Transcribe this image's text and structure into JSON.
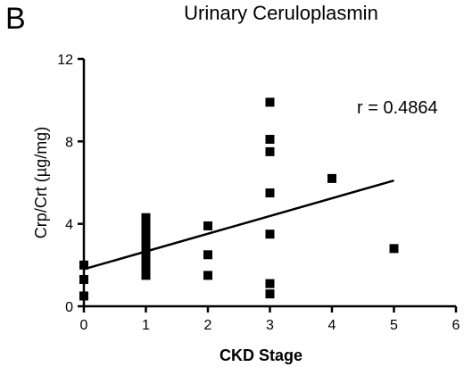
{
  "panel_letter": "B",
  "chart_data": {
    "type": "scatter",
    "title": "Urinary Ceruloplasmin",
    "xlabel": "CKD Stage",
    "ylabel": "Crp/Crt (µg/mg)",
    "xlim": [
      0,
      6
    ],
    "ylim": [
      0,
      12
    ],
    "xticks": [
      0,
      1,
      2,
      3,
      4,
      5,
      6
    ],
    "yticks": [
      0,
      4,
      8,
      12
    ],
    "grid": false,
    "annotation": "r = 0.4864",
    "series": [
      {
        "points": [
          [
            0,
            2.0
          ],
          [
            0,
            1.3
          ],
          [
            0,
            0.5
          ],
          [
            1,
            4.3
          ],
          [
            1,
            4.1
          ],
          [
            1,
            3.9
          ],
          [
            1,
            3.7
          ],
          [
            1,
            3.5
          ],
          [
            1,
            3.3
          ],
          [
            1,
            3.1
          ],
          [
            1,
            2.9
          ],
          [
            1,
            2.7
          ],
          [
            1,
            2.5
          ],
          [
            1,
            2.3
          ],
          [
            1,
            2.1
          ],
          [
            1,
            1.9
          ],
          [
            1,
            1.7
          ],
          [
            1,
            1.5
          ],
          [
            2,
            3.9
          ],
          [
            2,
            2.5
          ],
          [
            2,
            1.5
          ],
          [
            3,
            9.9
          ],
          [
            3,
            8.1
          ],
          [
            3,
            7.5
          ],
          [
            3,
            5.5
          ],
          [
            3,
            3.5
          ],
          [
            3,
            1.1
          ],
          [
            3,
            0.6
          ],
          [
            4,
            6.2
          ],
          [
            5,
            2.8
          ]
        ]
      }
    ],
    "trendline": {
      "x": [
        0,
        5
      ],
      "y": [
        1.8,
        6.1
      ]
    }
  }
}
